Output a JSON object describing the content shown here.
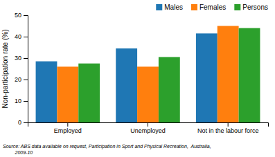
{
  "chart_data": {
    "type": "bar",
    "ylabel": "Non-participation rate (%)",
    "categories": [
      "Employed",
      "Unemployed",
      "Not in the labour force"
    ],
    "series": [
      {
        "name": "Males",
        "values": [
          28.5,
          34.5,
          41.5
        ]
      },
      {
        "name": "Females",
        "values": [
          26.0,
          26.0,
          45.0
        ]
      },
      {
        "name": "Persons",
        "values": [
          27.5,
          30.5,
          44.0
        ]
      }
    ],
    "ylim": [
      0,
      50
    ],
    "yticks": [
      0,
      10,
      20,
      30,
      40,
      50
    ],
    "grid": false,
    "legend": "top",
    "annotations": [
      "Source: ABS data available on request, Participation in Sport and Physical Recreation,  Australia,",
      "         2009-10"
    ]
  }
}
